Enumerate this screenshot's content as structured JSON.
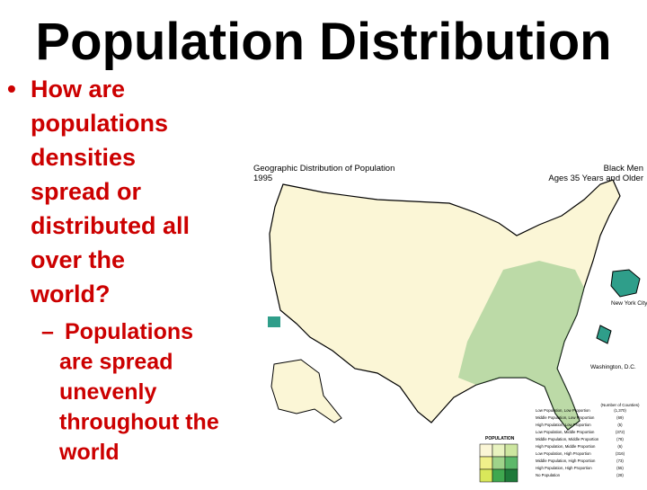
{
  "slide": {
    "title": "Population Distribution",
    "bullet": {
      "marker": "•",
      "lines": [
        "How are",
        "populations",
        "densities",
        "spread or",
        "distributed all",
        "over the",
        "world?"
      ]
    },
    "sub_bullet": {
      "marker": "–",
      "lines": [
        "Populations",
        "are spread",
        "unevenly",
        "throughout the",
        "world"
      ]
    },
    "map": {
      "title_lines": [
        "Geographic Distribution of Population",
        "1995"
      ],
      "subject_lines": [
        "Black Men",
        "Ages 35 Years and Older"
      ],
      "insets": [
        "New York City",
        "Washington, D.C."
      ],
      "legend": {
        "heading": "POPULATION",
        "count_heading": "(Number of Counties)",
        "items": [
          {
            "label": "Low Population, Low Proportion",
            "count": "(1,370)"
          },
          {
            "label": "Middle Population, Low Proportion",
            "count": "(69)"
          },
          {
            "label": "High Population, Low Proportion",
            "count": "(5)"
          },
          {
            "label": "Low Population, Middle Proportion",
            "count": "(372)"
          },
          {
            "label": "Middle Population, Middle Proportion",
            "count": "(78)"
          },
          {
            "label": "High Population, Middle Proportion",
            "count": "(6)"
          },
          {
            "label": "Low Population, High Proportion",
            "count": "(316)"
          },
          {
            "label": "Middle Population, High Proportion",
            "count": "(73)"
          },
          {
            "label": "High Population, High Proportion",
            "count": "(55)"
          },
          {
            "label": "No Population",
            "count": "(28)"
          }
        ]
      }
    }
  }
}
